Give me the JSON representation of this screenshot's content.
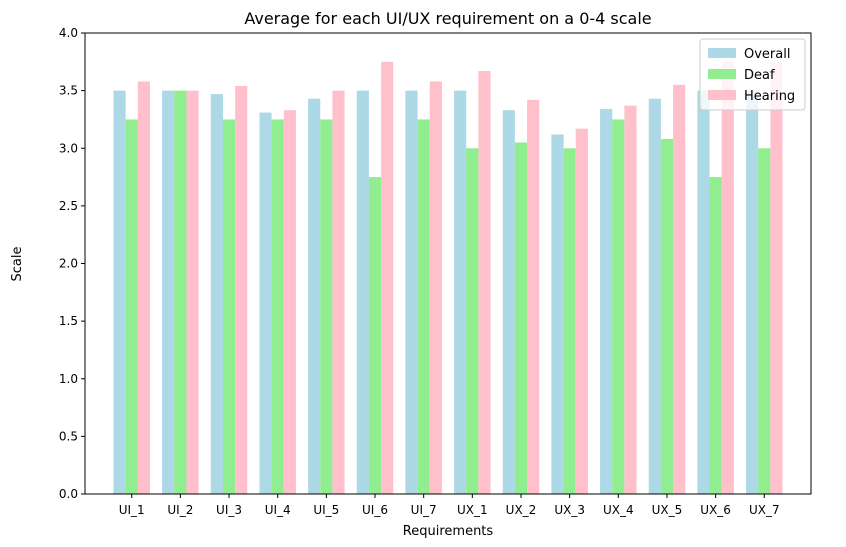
{
  "chart_data": {
    "type": "bar",
    "title": "Average for each UI/UX requirement on a 0-4 scale",
    "xlabel": "Requirements",
    "ylabel": "Scale",
    "ylim": [
      0,
      4
    ],
    "yticks": [
      "0.0",
      "0.5",
      "1.0",
      "1.5",
      "2.0",
      "2.5",
      "3.0",
      "3.5",
      "4.0"
    ],
    "grid": false,
    "legend_position": "top-right",
    "categories": [
      "UI_1",
      "UI_2",
      "UI_3",
      "UI_4",
      "UI_5",
      "UI_6",
      "UI_7",
      "UX_1",
      "UX_2",
      "UX_3",
      "UX_4",
      "UX_5",
      "UX_6",
      "UX_7"
    ],
    "series": [
      {
        "name": "Overall",
        "color": "#add8e6",
        "values": [
          3.5,
          3.5,
          3.47,
          3.31,
          3.43,
          3.5,
          3.5,
          3.5,
          3.33,
          3.12,
          3.34,
          3.43,
          3.5,
          3.5
        ]
      },
      {
        "name": "Deaf",
        "color": "#90ee90",
        "values": [
          3.25,
          3.5,
          3.25,
          3.25,
          3.25,
          2.75,
          3.25,
          3.0,
          3.05,
          3.0,
          3.25,
          3.08,
          2.75,
          3.0
        ]
      },
      {
        "name": "Hearing",
        "color": "#ffc0cb",
        "values": [
          3.58,
          3.5,
          3.54,
          3.33,
          3.5,
          3.75,
          3.58,
          3.67,
          3.42,
          3.17,
          3.37,
          3.55,
          3.75,
          3.75
        ]
      }
    ]
  }
}
